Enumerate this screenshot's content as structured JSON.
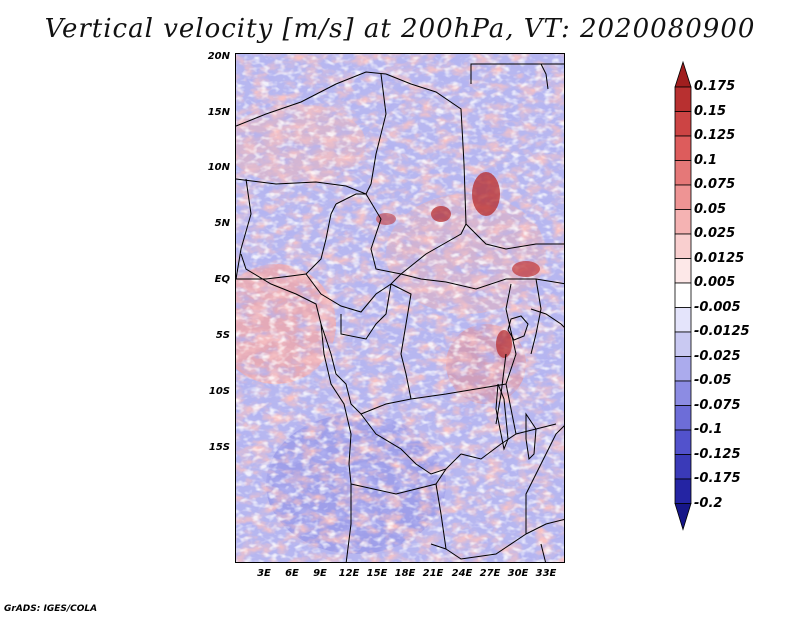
{
  "title": "Vertical velocity [m/s] at 200hPa, VT: 2020080900",
  "map": {
    "lat_labels": [
      "20N",
      "15N",
      "10N",
      "5N",
      "EQ",
      "5S",
      "10S",
      "15S"
    ],
    "lon_labels": [
      "3E",
      "6E",
      "9E",
      "12E",
      "15E",
      "18E",
      "21E",
      "24E",
      "27E",
      "30E",
      "33E"
    ],
    "field": "vertical velocity",
    "pressure_level": "200hPa"
  },
  "colorbar": {
    "levels": [
      "0.175",
      "0.15",
      "0.125",
      "0.1",
      "0.075",
      "0.05",
      "0.025",
      "0.0125",
      "0.005",
      "-0.005",
      "-0.0125",
      "-0.025",
      "-0.05",
      "-0.075",
      "-0.1",
      "-0.125",
      "-0.175",
      "-0.2"
    ],
    "colors": [
      "#a01e1e",
      "#b83030",
      "#cc4444",
      "#dd5c5c",
      "#e57878",
      "#ee9494",
      "#f5b3b3",
      "#f9cfcf",
      "#fde8e8",
      "#ffffff",
      "#e4e4fb",
      "#c9c9f2",
      "#ababed",
      "#8c8ce3",
      "#6d6dd8",
      "#5252cc",
      "#3a3ab8",
      "#2424a3",
      "#161688"
    ]
  },
  "credit": "GrADS: IGES/COLA"
}
